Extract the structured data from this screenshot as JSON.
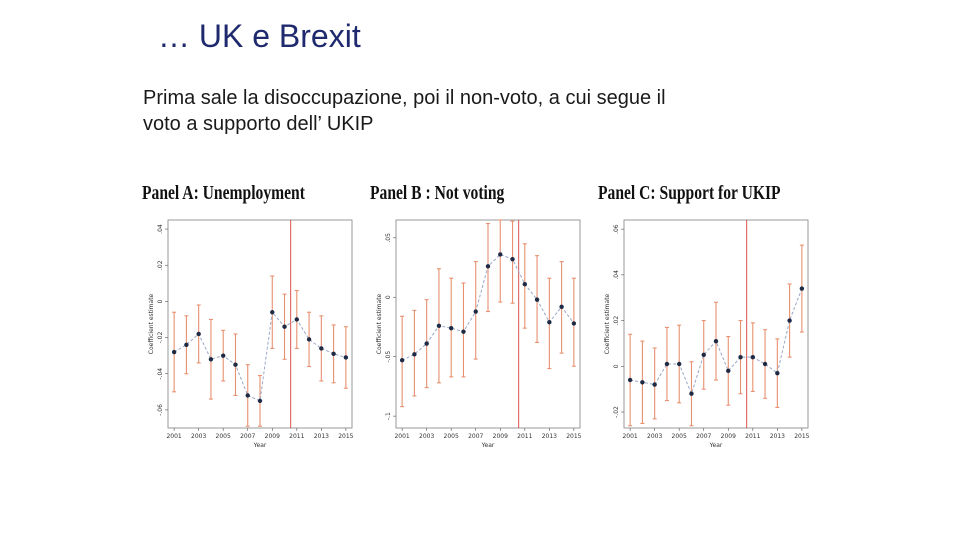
{
  "slide": {
    "title": "… UK e Brexit",
    "body_line1": "Prima sale la disoccupazione,  poi il non-voto, a cui segue il",
    "body_line2": "voto a supporto dell’ UKIP"
  },
  "colors": {
    "error_bar": "#e8906f",
    "referendum_line": "#d9534f",
    "dashed_line": "#9aa8c8",
    "point": "#1f2a44",
    "frame": "#999999"
  },
  "chart_data": [
    {
      "type": "line",
      "title": "Panel A: Unemployment",
      "xlabel": "Year",
      "ylabel": "Coefficient estimate",
      "x_ticks": [
        "2001",
        "2003",
        "2005",
        "2007",
        "2009",
        "2011",
        "2013",
        "2015"
      ],
      "y_ticks": [
        "-.06",
        "-.04",
        "-.02",
        "0",
        ".02",
        ".04"
      ],
      "xlim": [
        2000.5,
        2015.5
      ],
      "ylim": [
        -0.07,
        0.045
      ],
      "vline_x": 2010.5,
      "series": [
        {
          "x": [
            2001,
            2002,
            2003,
            2004,
            2005,
            2006,
            2007,
            2008,
            2009,
            2010,
            2011,
            2012,
            2013,
            2014,
            2015
          ],
          "y": [
            -0.028,
            -0.024,
            -0.018,
            -0.032,
            -0.03,
            -0.035,
            -0.052,
            -0.055,
            -0.006,
            -0.014,
            -0.01,
            -0.021,
            -0.026,
            -0.029,
            -0.031
          ],
          "lower": [
            -0.05,
            -0.04,
            -0.034,
            -0.054,
            -0.044,
            -0.052,
            -0.069,
            -0.069,
            -0.026,
            -0.032,
            -0.026,
            -0.036,
            -0.044,
            -0.045,
            -0.048
          ],
          "upper": [
            -0.006,
            -0.008,
            -0.002,
            -0.01,
            -0.016,
            -0.018,
            -0.035,
            -0.041,
            0.014,
            0.004,
            0.006,
            -0.006,
            -0.008,
            -0.013,
            -0.014
          ]
        }
      ]
    },
    {
      "type": "line",
      "title": "Panel B : Not voting",
      "xlabel": "Year",
      "ylabel": "Coefficient estimate",
      "x_ticks": [
        "2001",
        "2003",
        "2005",
        "2007",
        "2009",
        "2011",
        "2013",
        "2015"
      ],
      "y_ticks": [
        "-.1",
        "-.05",
        "0",
        ".05"
      ],
      "xlim": [
        2000.5,
        2015.5
      ],
      "ylim": [
        -0.11,
        0.065
      ],
      "vline_x": 2010.5,
      "series": [
        {
          "x": [
            2001,
            2002,
            2003,
            2004,
            2005,
            2006,
            2007,
            2008,
            2009,
            2010,
            2011,
            2012,
            2013,
            2014,
            2015
          ],
          "y": [
            -0.053,
            -0.048,
            -0.039,
            -0.024,
            -0.026,
            -0.029,
            -0.012,
            0.026,
            0.036,
            0.032,
            0.011,
            -0.002,
            -0.021,
            -0.008,
            -0.022
          ],
          "lower": [
            -0.092,
            -0.083,
            -0.076,
            -0.072,
            -0.067,
            -0.067,
            -0.052,
            -0.012,
            -0.004,
            -0.005,
            -0.026,
            -0.038,
            -0.06,
            -0.047,
            -0.058
          ],
          "upper": [
            -0.016,
            -0.011,
            -0.002,
            0.024,
            0.016,
            0.012,
            0.03,
            0.062,
            0.065,
            0.064,
            0.045,
            0.035,
            0.016,
            0.03,
            0.016
          ]
        }
      ]
    },
    {
      "type": "line",
      "title": "Panel C: Support for UKIP",
      "xlabel": "Year",
      "ylabel": "Coefficient estimate",
      "x_ticks": [
        "2001",
        "2003",
        "2005",
        "2007",
        "2009",
        "2011",
        "2013",
        "2015"
      ],
      "y_ticks": [
        "-.02",
        "0",
        ".02",
        ".04",
        ".06"
      ],
      "xlim": [
        2000.5,
        2015.5
      ],
      "ylim": [
        -0.027,
        0.064
      ],
      "vline_x": 2010.5,
      "series": [
        {
          "x": [
            2001,
            2002,
            2003,
            2004,
            2005,
            2006,
            2007,
            2008,
            2009,
            2010,
            2011,
            2012,
            2013,
            2014,
            2015
          ],
          "y": [
            -0.006,
            -0.007,
            -0.008,
            0.001,
            0.001,
            -0.012,
            0.005,
            0.011,
            -0.002,
            0.004,
            0.004,
            0.001,
            -0.003,
            0.02,
            0.034
          ],
          "lower": [
            -0.026,
            -0.025,
            -0.023,
            -0.015,
            -0.016,
            -0.026,
            -0.01,
            -0.006,
            -0.017,
            -0.012,
            -0.011,
            -0.014,
            -0.018,
            0.004,
            0.015
          ],
          "upper": [
            0.014,
            0.011,
            0.008,
            0.017,
            0.018,
            0.002,
            0.02,
            0.028,
            0.013,
            0.02,
            0.019,
            0.016,
            0.012,
            0.036,
            0.053
          ]
        }
      ]
    }
  ]
}
